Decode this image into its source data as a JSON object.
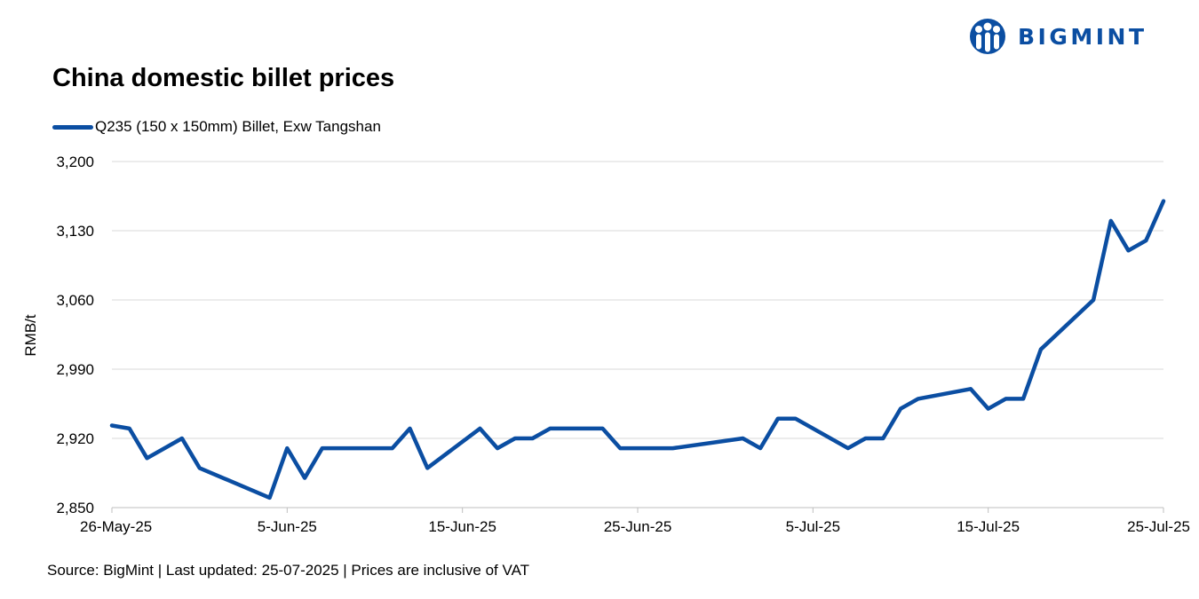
{
  "brand": {
    "name": "BIGMINT",
    "logo_icon": "bigmint-people-logo-icon",
    "color": "#0b4ea2"
  },
  "chart_data": {
    "type": "line",
    "title": "China domestic billet prices",
    "ylabel": "RMB/t",
    "xlabel": "",
    "ylim": [
      2850,
      3200
    ],
    "yticks": [
      2850,
      2920,
      2990,
      3060,
      3130,
      3200
    ],
    "ytick_labels": [
      "2,850",
      "2,920",
      "2,990",
      "3,060",
      "3,130",
      "3,200"
    ],
    "xticks": [
      "2025-05-26",
      "2025-06-05",
      "2025-06-15",
      "2025-06-25",
      "2025-07-05",
      "2025-07-15",
      "2025-07-25"
    ],
    "xtick_labels": [
      "26-May-25",
      "5-Jun-25",
      "15-Jun-25",
      "25-Jun-25",
      "5-Jul-25",
      "15-Jul-25",
      "25-Jul-25"
    ],
    "grid": true,
    "legend_position": "top-left",
    "series": [
      {
        "name": "Q235 (150 x 150mm) Billet, Exw Tangshan",
        "color": "#0b4ea2",
        "points": [
          [
            "2025-05-26",
            2933
          ],
          [
            "2025-05-27",
            2930
          ],
          [
            "2025-05-28",
            2900
          ],
          [
            "2025-05-30",
            2920
          ],
          [
            "2025-05-31",
            2890
          ],
          [
            "2025-06-04",
            2860
          ],
          [
            "2025-06-05",
            2910
          ],
          [
            "2025-06-06",
            2880
          ],
          [
            "2025-06-07",
            2910
          ],
          [
            "2025-06-11",
            2910
          ],
          [
            "2025-06-12",
            2930
          ],
          [
            "2025-06-13",
            2890
          ],
          [
            "2025-06-16",
            2930
          ],
          [
            "2025-06-17",
            2910
          ],
          [
            "2025-06-18",
            2920
          ],
          [
            "2025-06-19",
            2920
          ],
          [
            "2025-06-20",
            2930
          ],
          [
            "2025-06-23",
            2930
          ],
          [
            "2025-06-24",
            2910
          ],
          [
            "2025-06-27",
            2910
          ],
          [
            "2025-07-01",
            2920
          ],
          [
            "2025-07-02",
            2910
          ],
          [
            "2025-07-03",
            2940
          ],
          [
            "2025-07-04",
            2940
          ],
          [
            "2025-07-07",
            2910
          ],
          [
            "2025-07-08",
            2920
          ],
          [
            "2025-07-09",
            2920
          ],
          [
            "2025-07-10",
            2950
          ],
          [
            "2025-07-11",
            2960
          ],
          [
            "2025-07-14",
            2970
          ],
          [
            "2025-07-15",
            2950
          ],
          [
            "2025-07-16",
            2960
          ],
          [
            "2025-07-17",
            2960
          ],
          [
            "2025-07-18",
            3010
          ],
          [
            "2025-07-21",
            3060
          ],
          [
            "2025-07-22",
            3140
          ],
          [
            "2025-07-23",
            3110
          ],
          [
            "2025-07-24",
            3120
          ],
          [
            "2025-07-25",
            3160
          ]
        ]
      }
    ]
  },
  "footer": {
    "text": "Source: BigMint | Last updated: 25-07-2025 | Prices are inclusive of VAT"
  }
}
